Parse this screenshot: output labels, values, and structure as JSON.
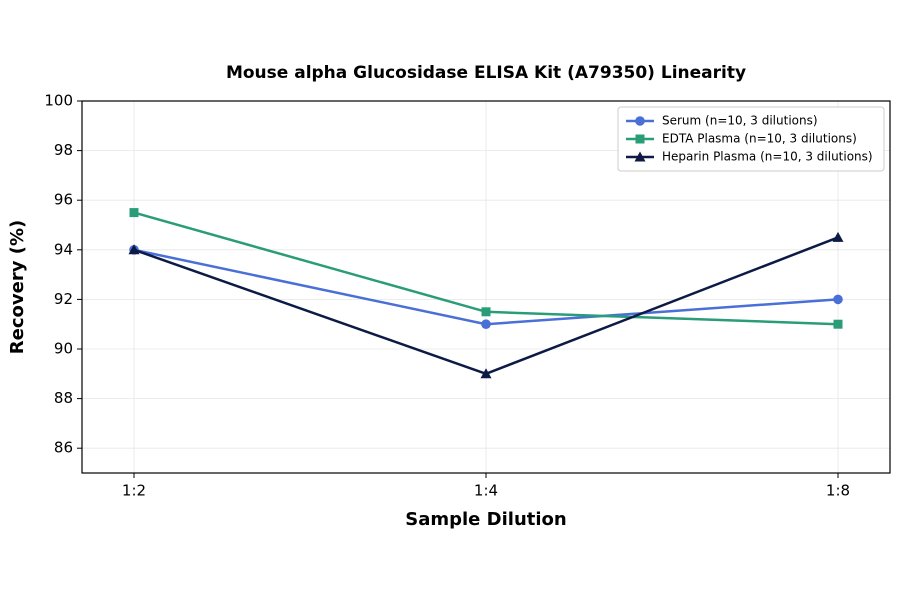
{
  "chart_data": {
    "type": "line",
    "title": "Mouse alpha Glucosidase ELISA Kit (A79350) Linearity",
    "x_label": "Sample Dilution",
    "y_label": "Recovery (%)",
    "categories": [
      "1:2",
      "1:4",
      "1:8"
    ],
    "series": [
      {
        "name": "Serum (n=10, 3 dilutions)",
        "color": "#4a6fd6",
        "marker": "circle",
        "values": [
          94,
          91,
          92
        ]
      },
      {
        "name": "EDTA Plasma (n=10, 3 dilutions)",
        "color": "#2a9d78",
        "marker": "square",
        "values": [
          95.5,
          91.5,
          91
        ]
      },
      {
        "name": "Heparin Plasma (n=10, 3 dilutions)",
        "color": "#0c1a45",
        "marker": "triangle",
        "values": [
          94,
          89,
          94.5
        ]
      }
    ],
    "ylim": [
      85,
      100
    ],
    "yticks": [
      86,
      88,
      90,
      92,
      94,
      96,
      98,
      100
    ],
    "grid": true,
    "legend": "upper right"
  }
}
